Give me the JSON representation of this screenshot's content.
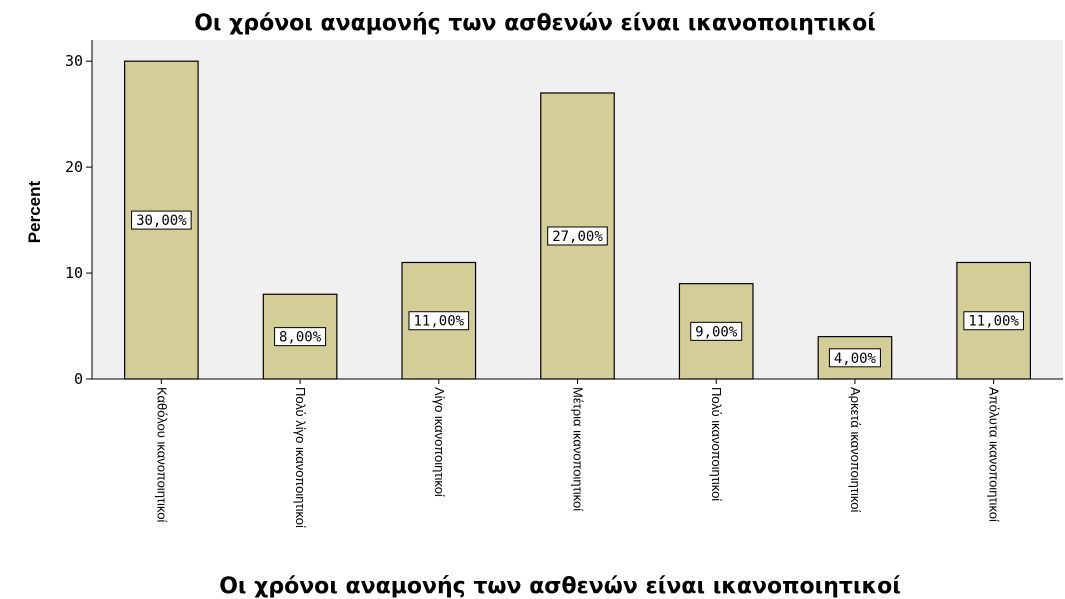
{
  "chart_data": {
    "type": "bar",
    "title": "Οι χρόνοι αναμονής των ασθενών είναι ικανοποιητικοί",
    "xlabel": "Οι χρόνοι αναμονής των ασθενών είναι ικανοποιητικοί",
    "ylabel": "Percent",
    "categories": [
      "Καθόλου ικανοποιητικοί",
      "Πολύ λίγο ικανοποιητικοί",
      "Λίγο ικανοποιητικοί",
      "Μέτρια ικανοποιητικοί",
      "Πολύ ικανοποιητικοί",
      "Αρκετά ικανοποιητικοί",
      "Απόλυτα ικανοποιητικοί"
    ],
    "values": [
      30,
      8,
      11,
      27,
      9,
      4,
      11
    ],
    "data_labels": [
      "30,00%",
      "8,00%",
      "11,00%",
      "27,00%",
      "9,00%",
      "4,00%",
      "11,00%"
    ],
    "ylim": [
      0,
      32
    ],
    "yticks": [
      0,
      10,
      20,
      30
    ],
    "colors": {
      "plot_background": "#f0f0f0",
      "bar_fill": "#d3ce97",
      "bar_stroke": "#000000"
    }
  }
}
